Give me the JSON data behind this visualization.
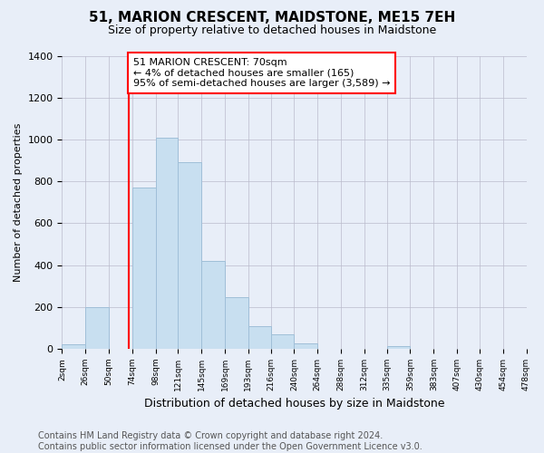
{
  "title": "51, MARION CRESCENT, MAIDSTONE, ME15 7EH",
  "subtitle": "Size of property relative to detached houses in Maidstone",
  "xlabel": "Distribution of detached houses by size in Maidstone",
  "ylabel": "Number of detached properties",
  "bin_edges": [
    2,
    26,
    50,
    74,
    98,
    121,
    145,
    169,
    193,
    216,
    240,
    264,
    288,
    312,
    335,
    359,
    383,
    407,
    430,
    454,
    478
  ],
  "bin_labels": [
    "2sqm",
    "26sqm",
    "50sqm",
    "74sqm",
    "98sqm",
    "121sqm",
    "145sqm",
    "169sqm",
    "193sqm",
    "216sqm",
    "240sqm",
    "264sqm",
    "288sqm",
    "312sqm",
    "335sqm",
    "359sqm",
    "383sqm",
    "407sqm",
    "430sqm",
    "454sqm",
    "478sqm"
  ],
  "counts": [
    20,
    200,
    0,
    770,
    1010,
    890,
    420,
    245,
    110,
    70,
    25,
    0,
    0,
    0,
    15,
    0,
    0,
    0,
    0,
    0
  ],
  "bar_color": "#c8dff0",
  "bar_edgecolor": "#a0bfd8",
  "property_line_x": 70,
  "property_line_color": "red",
  "annotation_line1": "51 MARION CRESCENT: 70sqm",
  "annotation_line2": "← 4% of detached houses are smaller (165)",
  "annotation_line3": "95% of semi-detached houses are larger (3,589) →",
  "annotation_box_edgecolor": "red",
  "annotation_box_facecolor": "white",
  "ylim": [
    0,
    1400
  ],
  "yticks": [
    0,
    200,
    400,
    600,
    800,
    1000,
    1200,
    1400
  ],
  "footer_text": "Contains HM Land Registry data © Crown copyright and database right 2024.\nContains public sector information licensed under the Open Government Licence v3.0.",
  "background_color": "#e8eef8",
  "plot_background_color": "#e8eef8",
  "title_fontsize": 11,
  "subtitle_fontsize": 9,
  "xlabel_fontsize": 9,
  "ylabel_fontsize": 8,
  "footer_fontsize": 7
}
